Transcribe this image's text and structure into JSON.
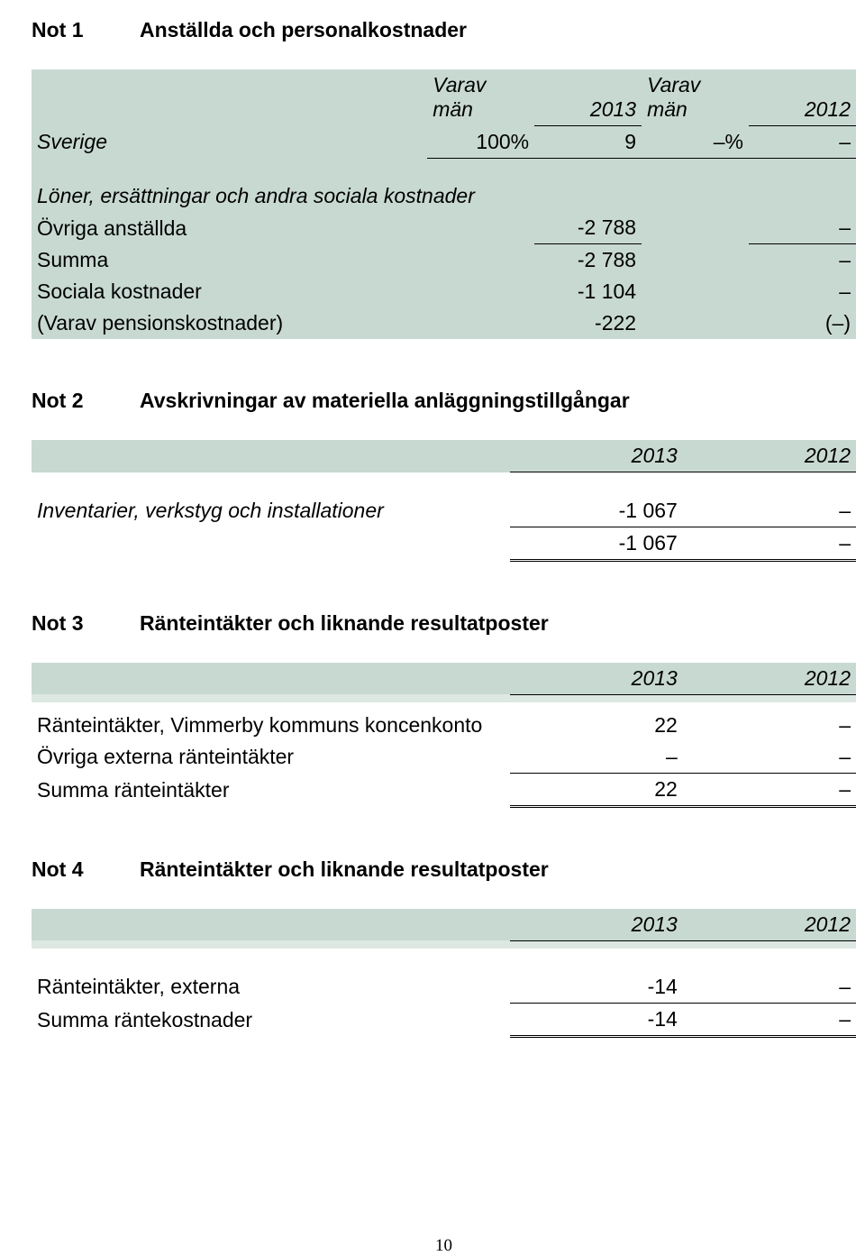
{
  "colors": {
    "band": "#c8d9d2",
    "band_light": "#dde8e3",
    "text": "#000000",
    "bg": "#ffffff"
  },
  "fontsize": {
    "body": 23,
    "footer": 19
  },
  "note1": {
    "num": "Not 1",
    "title": "Anställda och personalkostnader",
    "header": {
      "h1a": "Varav",
      "h1b": "män",
      "h2": "2013",
      "h3a": "Varav",
      "h3b": "män",
      "h4": "2012"
    },
    "rows": {
      "sverige": {
        "label": "Sverige",
        "a": "100%",
        "b": "9",
        "c": "–%",
        "d": "–"
      },
      "sub": {
        "label": "Löner, ersättningar och andra sociala kostnader"
      },
      "ovriga": {
        "label": "Övriga anställda",
        "b": "-2 788",
        "d": "–"
      },
      "summa": {
        "label": "Summa",
        "b": "-2 788",
        "d": "–"
      },
      "sociala": {
        "label": "Sociala kostnader",
        "b": "-1 104",
        "d": "–"
      },
      "pension": {
        "label": "(Varav pensionskostnader)",
        "b": "-222",
        "d": "(–)"
      }
    }
  },
  "note2": {
    "num": "Not 2",
    "title": "Avskrivningar av materiella anläggningstillgångar",
    "header": {
      "h1": "2013",
      "h2": "2012"
    },
    "rows": {
      "inv": {
        "label": "Inventarier, verkstyg och installationer",
        "b": "-1 067",
        "d": "–"
      },
      "tot": {
        "b": "-1 067",
        "d": "–"
      }
    }
  },
  "note3": {
    "num": "Not 3",
    "title": "Ränteintäkter och liknande resultatposter",
    "header": {
      "h1": "2013",
      "h2": "2012"
    },
    "rows": {
      "r1": {
        "label": "Ränteintäkter, Vimmerby kommuns koncenkonto",
        "b": "22",
        "d": "–"
      },
      "r2": {
        "label": "Övriga externa ränteintäkter",
        "b": "–",
        "d": "–"
      },
      "r3": {
        "label": "Summa ränteintäkter",
        "b": "22",
        "d": "–"
      }
    }
  },
  "note4": {
    "num": "Not 4",
    "title": "Ränteintäkter och liknande resultatposter",
    "header": {
      "h1": "2013",
      "h2": "2012"
    },
    "rows": {
      "r1": {
        "label": "Ränteintäkter, externa",
        "b": "-14",
        "d": "–"
      },
      "r2": {
        "label": "Summa räntekostnader",
        "b": "-14",
        "d": "–"
      }
    }
  },
  "page_number": "10"
}
